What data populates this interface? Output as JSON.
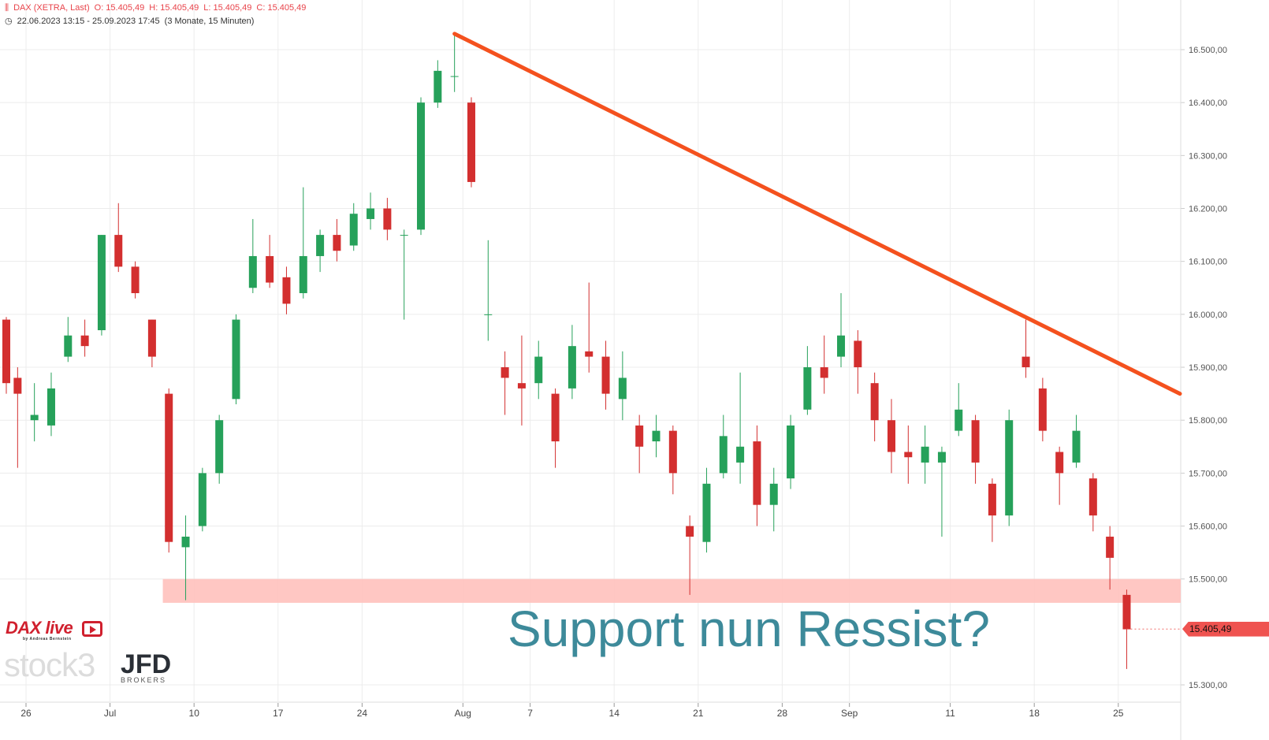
{
  "header": {
    "instrument": "DAX (XETRA, Last)",
    "open": "O: 15.405,49",
    "high": "H: 15.405,49",
    "low": "L: 15.405,49",
    "close": "C: 15.405,49",
    "range": "22.06.2023 13:15 - 25.09.2023 17:45",
    "period": "(3 Monate, 15 Minuten)",
    "icons": [
      "candles-icon",
      "clock-icon"
    ]
  },
  "logos": {
    "dax_live": "DAX live",
    "dax_live_sub": "by Andreas Bernstein",
    "stock3": "stock3",
    "jfd": "JFD",
    "jfd_sub": "BROKERS"
  },
  "colors": {
    "up": "#26a15a",
    "down": "#d32f2f",
    "trendline": "#f4511e",
    "zone": "#ffc4c0",
    "annotation": "#3d8a9a",
    "last_price": "#ef5350"
  },
  "chart_data": {
    "type": "candlestick",
    "ylim": [
      15250,
      16560
    ],
    "yticks": [
      "16.500,00",
      "16.400,00",
      "16.300,00",
      "16.200,00",
      "16.100,00",
      "16.000,00",
      "15.900,00",
      "15.800,00",
      "15.700,00",
      "15.600,00",
      "15.500,00",
      "15.300,00"
    ],
    "ytick_values": [
      16500,
      16400,
      16300,
      16200,
      16100,
      16000,
      15900,
      15800,
      15700,
      15600,
      15500,
      15300
    ],
    "xticks": [
      {
        "date": "2023-06-26",
        "label": "26"
      },
      {
        "date": "2023-07-03",
        "label": "Jul"
      },
      {
        "date": "2023-07-10",
        "label": "10"
      },
      {
        "date": "2023-07-17",
        "label": "17"
      },
      {
        "date": "2023-07-24",
        "label": "24"
      },
      {
        "date": "2023-08-01",
        "label": "Aug"
      },
      {
        "date": "2023-08-07",
        "label": "7"
      },
      {
        "date": "2023-08-14",
        "label": "14"
      },
      {
        "date": "2023-08-21",
        "label": "21"
      },
      {
        "date": "2023-08-28",
        "label": "28"
      },
      {
        "date": "2023-09-01",
        "label": "Sep"
      },
      {
        "date": "2023-09-11",
        "label": "11"
      },
      {
        "date": "2023-09-18",
        "label": "18"
      },
      {
        "date": "2023-09-25",
        "label": "25"
      }
    ],
    "grid": true,
    "last_price": {
      "value": 15405.49,
      "label": "15.405,49"
    },
    "candles": [
      [
        "2023-06-22",
        15990,
        15995,
        15850,
        15870
      ],
      [
        "2023-06-23",
        15880,
        15900,
        15710,
        15850
      ],
      [
        "2023-06-26",
        15800,
        15870,
        15760,
        15810
      ],
      [
        "2023-06-27",
        15790,
        15890,
        15770,
        15860
      ],
      [
        "2023-06-28",
        15920,
        15995,
        15910,
        15960
      ],
      [
        "2023-06-29",
        15960,
        15990,
        15920,
        15940
      ],
      [
        "2023-06-30",
        15970,
        16150,
        15960,
        16150
      ],
      [
        "2023-07-03",
        16150,
        16210,
        16080,
        16090
      ],
      [
        "2023-07-04",
        16090,
        16100,
        16030,
        16040
      ],
      [
        "2023-07-05",
        15990,
        15990,
        15900,
        15920
      ],
      [
        "2023-07-06",
        15850,
        15860,
        15550,
        15570
      ],
      [
        "2023-07-07",
        15560,
        15620,
        15460,
        15580
      ],
      [
        "2023-07-10",
        15600,
        15710,
        15590,
        15700
      ],
      [
        "2023-07-11",
        15700,
        15810,
        15680,
        15800
      ],
      [
        "2023-07-12",
        15840,
        16000,
        15830,
        15990
      ],
      [
        "2023-07-13",
        16050,
        16180,
        16040,
        16110
      ],
      [
        "2023-07-14",
        16110,
        16150,
        16050,
        16060
      ],
      [
        "2023-07-17",
        16070,
        16090,
        16000,
        16020
      ],
      [
        "2023-07-18",
        16040,
        16240,
        16030,
        16110
      ],
      [
        "2023-07-19",
        16110,
        16160,
        16080,
        16150
      ],
      [
        "2023-07-20",
        16150,
        16180,
        16100,
        16120
      ],
      [
        "2023-07-21",
        16130,
        16210,
        16120,
        16190
      ],
      [
        "2023-07-24",
        16180,
        16230,
        16160,
        16200
      ],
      [
        "2023-07-25",
        16200,
        16220,
        16140,
        16160
      ],
      [
        "2023-07-26",
        16150,
        16160,
        15990,
        16150
      ],
      [
        "2023-07-27",
        16160,
        16410,
        16150,
        16400
      ],
      [
        "2023-07-28",
        16400,
        16480,
        16390,
        16460
      ],
      [
        "2023-07-31",
        16450,
        16530,
        16420,
        16450
      ],
      [
        "2023-08-01",
        16400,
        16410,
        16240,
        16250
      ],
      [
        "2023-08-02",
        16000,
        16140,
        15950,
        16000
      ],
      [
        "2023-08-03",
        15900,
        15930,
        15810,
        15880
      ],
      [
        "2023-08-04",
        15870,
        15960,
        15790,
        15860
      ],
      [
        "2023-08-07",
        15870,
        15950,
        15840,
        15920
      ],
      [
        "2023-08-08",
        15850,
        15860,
        15710,
        15760
      ],
      [
        "2023-08-09",
        15860,
        15980,
        15840,
        15940
      ],
      [
        "2023-08-10",
        15930,
        16060,
        15890,
        15920
      ],
      [
        "2023-08-11",
        15920,
        15950,
        15820,
        15850
      ],
      [
        "2023-08-14",
        15840,
        15930,
        15800,
        15880
      ],
      [
        "2023-08-15",
        15790,
        15810,
        15700,
        15750
      ],
      [
        "2023-08-16",
        15760,
        15810,
        15730,
        15780
      ],
      [
        "2023-08-17",
        15780,
        15790,
        15660,
        15700
      ],
      [
        "2023-08-18",
        15600,
        15620,
        15470,
        15580
      ],
      [
        "2023-08-21",
        15570,
        15710,
        15550,
        15680
      ],
      [
        "2023-08-22",
        15700,
        15810,
        15690,
        15770
      ],
      [
        "2023-08-23",
        15720,
        15890,
        15680,
        15750
      ],
      [
        "2023-08-24",
        15760,
        15790,
        15600,
        15640
      ],
      [
        "2023-08-25",
        15640,
        15710,
        15590,
        15680
      ],
      [
        "2023-08-28",
        15690,
        15810,
        15670,
        15790
      ],
      [
        "2023-08-29",
        15820,
        15940,
        15810,
        15900
      ],
      [
        "2023-08-30",
        15900,
        15960,
        15850,
        15880
      ],
      [
        "2023-08-31",
        15920,
        16040,
        15900,
        15960
      ],
      [
        "2023-09-01",
        15950,
        15970,
        15850,
        15900
      ],
      [
        "2023-09-04",
        15870,
        15890,
        15760,
        15800
      ],
      [
        "2023-09-05",
        15800,
        15840,
        15700,
        15740
      ],
      [
        "2023-09-06",
        15740,
        15790,
        15680,
        15730
      ],
      [
        "2023-09-07",
        15720,
        15790,
        15680,
        15750
      ],
      [
        "2023-09-08",
        15720,
        15750,
        15580,
        15740
      ],
      [
        "2023-09-11",
        15780,
        15870,
        15770,
        15820
      ],
      [
        "2023-09-12",
        15800,
        15810,
        15680,
        15720
      ],
      [
        "2023-09-13",
        15680,
        15690,
        15570,
        15620
      ],
      [
        "2023-09-14",
        15620,
        15820,
        15600,
        15800
      ],
      [
        "2023-09-15",
        15920,
        15990,
        15880,
        15900
      ],
      [
        "2023-09-18",
        15860,
        15880,
        15760,
        15780
      ],
      [
        "2023-09-19",
        15740,
        15750,
        15640,
        15700
      ],
      [
        "2023-09-20",
        15720,
        15810,
        15710,
        15780
      ],
      [
        "2023-09-21",
        15690,
        15700,
        15590,
        15620
      ],
      [
        "2023-09-22",
        15580,
        15600,
        15480,
        15540
      ],
      [
        "2023-09-25",
        15470,
        15480,
        15330,
        15405
      ]
    ],
    "annotations": {
      "trendline": {
        "from": {
          "date": "2023-07-31",
          "price": 16530
        },
        "to": {
          "date": "2023-09-27",
          "price": 15850
        }
      },
      "support_zone": {
        "from_date": "2023-07-06",
        "low": 15455,
        "high": 15500
      },
      "text": "Support nun Ressist?"
    }
  }
}
